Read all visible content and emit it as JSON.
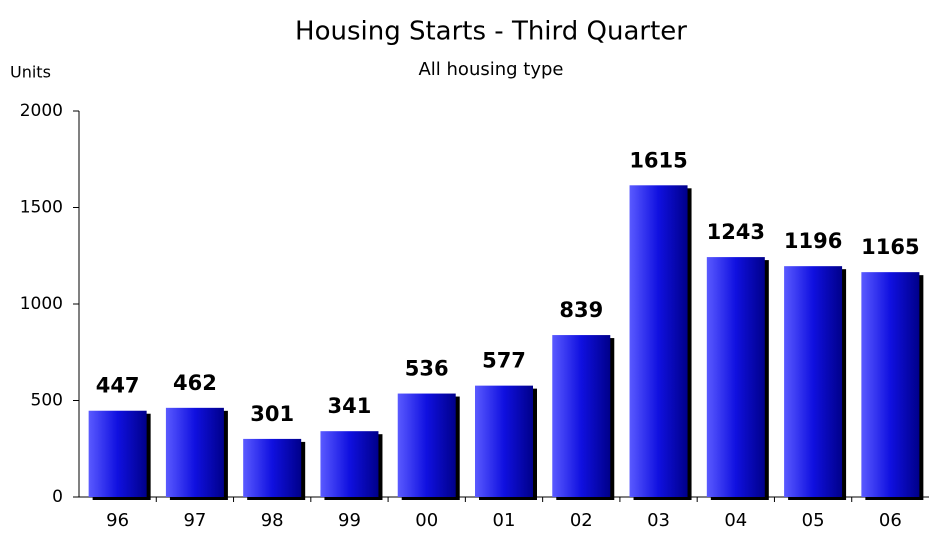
{
  "chart_data": {
    "type": "bar",
    "title": "Housing Starts - Third Quarter",
    "subtitle": "All housing type",
    "y_label": "Units",
    "categories": [
      "96",
      "97",
      "98",
      "99",
      "00",
      "01",
      "02",
      "03",
      "04",
      "05",
      "06"
    ],
    "values": [
      447,
      462,
      301,
      341,
      536,
      577,
      839,
      1615,
      1243,
      1196,
      1165
    ],
    "color": "#1010e0",
    "ylim": [
      0,
      2000
    ],
    "yticks": [
      0,
      500,
      1000,
      1500,
      2000
    ],
    "grid": false
  }
}
